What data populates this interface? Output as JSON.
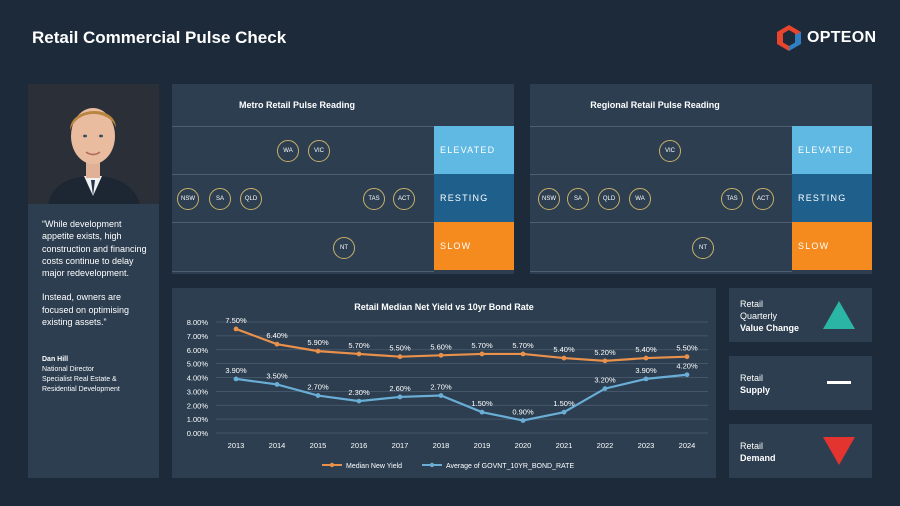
{
  "header": {
    "title": "Retail Commercial Pulse Check",
    "logo_text": "OPTEON"
  },
  "person": {
    "quote_p1": "“While development appetite exists, high construction and financing costs continue to delay major redevelopment.",
    "quote_p2": "Instead, owners are focused on optimising existing assets.”",
    "name": "Dan Hill",
    "role1": "National Director",
    "role2": "Specialist Real Estate &",
    "role3": "Residential Development"
  },
  "levels": {
    "elevated": "ELEVATED",
    "resting": "RESTING",
    "slow": "SLOW"
  },
  "metro": {
    "title": "Metro Retail Pulse Reading",
    "elevated": [
      "WA",
      "VIC"
    ],
    "resting": [
      "NSW",
      "SA",
      "QLD",
      "TAS",
      "ACT"
    ],
    "slow": [
      "NT"
    ]
  },
  "regional": {
    "title": "Regional Retail Pulse Reading",
    "elevated": [
      "VIC"
    ],
    "resting": [
      "NSW",
      "SA",
      "QLD",
      "WA",
      "TAS",
      "ACT"
    ],
    "slow": [
      "NT"
    ]
  },
  "side": [
    {
      "line1": "Retail",
      "line2": "Quarterly",
      "bold": "Value Change",
      "indicator": "up-triangle-icon",
      "color": "#2bb5a5"
    },
    {
      "line1": "Retail",
      "line2": "",
      "bold": "Supply",
      "indicator": "dash-icon",
      "color": "#ffffff"
    },
    {
      "line1": "Retail",
      "line2": "",
      "bold": "Demand",
      "indicator": "down-triangle-icon",
      "color": "#e3342f"
    }
  ],
  "chart_data": {
    "type": "line",
    "title": "Retail Median Net Yield vs 10yr Bond Rate",
    "categories": [
      "2013",
      "2014",
      "2015",
      "2016",
      "2017",
      "2018",
      "2019",
      "2020",
      "2021",
      "2022",
      "2023",
      "2024"
    ],
    "series": [
      {
        "name": "Median New Yield",
        "color": "#e9914a",
        "values": [
          7.5,
          6.4,
          5.9,
          5.7,
          5.5,
          5.6,
          5.7,
          5.7,
          5.4,
          5.2,
          5.4,
          5.5
        ],
        "labels": [
          "7.50%",
          "6.40%",
          "5.90%",
          "5.70%",
          "5.50%",
          "5.60%",
          "5.70%",
          "5.70%",
          "5.40%",
          "5.20%",
          "5.40%",
          "5.50%"
        ]
      },
      {
        "name": "Average of GOVNT_10YR_BOND_RATE",
        "color": "#6aaed6",
        "values": [
          3.9,
          3.5,
          2.7,
          2.3,
          2.6,
          2.7,
          1.5,
          0.9,
          1.5,
          3.2,
          3.9,
          4.2
        ],
        "labels": [
          "3.90%",
          "3.50%",
          "2.70%",
          "2.30%",
          "2.60%",
          "2.70%",
          "1.50%",
          "0.90%",
          "1.50%",
          "3.20%",
          "3.90%",
          "4.20%"
        ]
      }
    ],
    "yticks": [
      "0.00%",
      "1.00%",
      "2.00%",
      "3.00%",
      "4.00%",
      "5.00%",
      "6.00%",
      "7.00%",
      "8.00%"
    ],
    "ylim": [
      0,
      8
    ],
    "legend": "bottom"
  }
}
